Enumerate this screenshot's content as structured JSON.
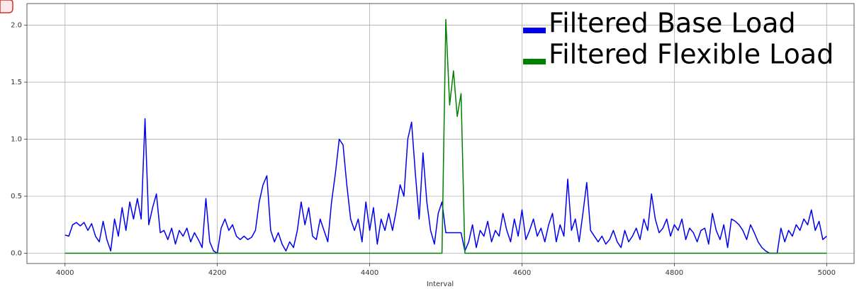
{
  "chart_data": {
    "type": "line",
    "xlabel": "Interval",
    "x": [
      4000,
      4005,
      4010,
      4015,
      4020,
      4025,
      4030,
      4035,
      4040,
      4045,
      4050,
      4055,
      4060,
      4065,
      4070,
      4075,
      4080,
      4085,
      4090,
      4095,
      4100,
      4105,
      4110,
      4115,
      4120,
      4125,
      4130,
      4135,
      4140,
      4145,
      4150,
      4155,
      4160,
      4165,
      4170,
      4175,
      4180,
      4185,
      4190,
      4195,
      4200,
      4205,
      4210,
      4215,
      4220,
      4225,
      4230,
      4235,
      4240,
      4245,
      4250,
      4255,
      4260,
      4265,
      4270,
      4275,
      4280,
      4285,
      4290,
      4295,
      4300,
      4305,
      4310,
      4315,
      4320,
      4325,
      4330,
      4335,
      4340,
      4345,
      4350,
      4355,
      4360,
      4365,
      4370,
      4375,
      4380,
      4385,
      4390,
      4395,
      4400,
      4405,
      4410,
      4415,
      4420,
      4425,
      4430,
      4435,
      4440,
      4445,
      4450,
      4455,
      4460,
      4465,
      4470,
      4475,
      4480,
      4485,
      4490,
      4495,
      4500,
      4505,
      4510,
      4515,
      4520,
      4525,
      4530,
      4535,
      4540,
      4545,
      4550,
      4555,
      4560,
      4565,
      4570,
      4575,
      4580,
      4585,
      4590,
      4595,
      4600,
      4605,
      4610,
      4615,
      4620,
      4625,
      4630,
      4635,
      4640,
      4645,
      4650,
      4655,
      4660,
      4665,
      4670,
      4675,
      4680,
      4685,
      4690,
      4695,
      4700,
      4705,
      4710,
      4715,
      4720,
      4725,
      4730,
      4735,
      4740,
      4745,
      4750,
      4755,
      4760,
      4765,
      4770,
      4775,
      4780,
      4785,
      4790,
      4795,
      4800,
      4805,
      4810,
      4815,
      4820,
      4825,
      4830,
      4835,
      4840,
      4845,
      4850,
      4855,
      4860,
      4865,
      4870,
      4875,
      4880,
      4885,
      4890,
      4895,
      4900,
      4905,
      4910,
      4915,
      4920,
      4925,
      4930,
      4935,
      4940,
      4945,
      4950,
      4955,
      4960,
      4965,
      4970,
      4975,
      4980,
      4985,
      4990,
      4995,
      5000
    ],
    "series": [
      {
        "name": "Filtered Base Load",
        "color": "#0000ee",
        "values": [
          0.16,
          0.15,
          0.25,
          0.27,
          0.24,
          0.27,
          0.2,
          0.26,
          0.15,
          0.1,
          0.28,
          0.12,
          0.02,
          0.3,
          0.15,
          0.4,
          0.2,
          0.45,
          0.3,
          0.48,
          0.3,
          1.18,
          0.25,
          0.4,
          0.52,
          0.18,
          0.2,
          0.12,
          0.22,
          0.08,
          0.2,
          0.15,
          0.22,
          0.1,
          0.18,
          0.12,
          0.05,
          0.48,
          0.1,
          0.02,
          0,
          0.22,
          0.3,
          0.2,
          0.25,
          0.15,
          0.12,
          0.15,
          0.12,
          0.14,
          0.2,
          0.45,
          0.6,
          0.68,
          0.2,
          0.1,
          0.18,
          0.08,
          0.02,
          0.1,
          0.05,
          0.2,
          0.45,
          0.25,
          0.4,
          0.15,
          0.12,
          0.3,
          0.2,
          0.1,
          0.45,
          0.7,
          1.0,
          0.95,
          0.6,
          0.3,
          0.2,
          0.3,
          0.1,
          0.45,
          0.2,
          0.4,
          0.08,
          0.3,
          0.2,
          0.35,
          0.2,
          0.38,
          0.6,
          0.5,
          1.0,
          1.15,
          0.7,
          0.3,
          0.88,
          0.45,
          0.2,
          0.08,
          0.35,
          0.45,
          0.18,
          0.18,
          0.18,
          0.18,
          0.18,
          0.02,
          0.1,
          0.25,
          0.05,
          0.2,
          0.15,
          0.28,
          0.1,
          0.2,
          0.15,
          0.35,
          0.2,
          0.1,
          0.3,
          0.15,
          0.38,
          0.12,
          0.2,
          0.3,
          0.15,
          0.22,
          0.1,
          0.25,
          0.35,
          0.1,
          0.25,
          0.15,
          0.65,
          0.2,
          0.3,
          0.1,
          0.35,
          0.62,
          0.2,
          0.15,
          0.1,
          0.15,
          0.08,
          0.12,
          0.2,
          0.1,
          0.05,
          0.2,
          0.1,
          0.15,
          0.22,
          0.12,
          0.3,
          0.2,
          0.52,
          0.3,
          0.18,
          0.22,
          0.3,
          0.15,
          0.25,
          0.2,
          0.3,
          0.12,
          0.22,
          0.18,
          0.1,
          0.2,
          0.22,
          0.08,
          0.35,
          0.2,
          0.12,
          0.25,
          0.05,
          0.3,
          0.28,
          0.25,
          0.2,
          0.12,
          0.25,
          0.18,
          0.1,
          0.05,
          0.02,
          0,
          0,
          0,
          0.22,
          0.1,
          0.2,
          0.15,
          0.25,
          0.2,
          0.3,
          0.25,
          0.38,
          0.2,
          0.28,
          0.12,
          0.15
        ]
      },
      {
        "name": "Filtered Flexible Load",
        "color": "#008000",
        "values": [
          0,
          0,
          0,
          0,
          0,
          0,
          0,
          0,
          0,
          0,
          0,
          0,
          0,
          0,
          0,
          0,
          0,
          0,
          0,
          0,
          0,
          0,
          0,
          0,
          0,
          0,
          0,
          0,
          0,
          0,
          0,
          0,
          0,
          0,
          0,
          0,
          0,
          0,
          0,
          0,
          0,
          0,
          0,
          0,
          0,
          0,
          0,
          0,
          0,
          0,
          0,
          0,
          0,
          0,
          0,
          0,
          0,
          0,
          0,
          0,
          0,
          0,
          0,
          0,
          0,
          0,
          0,
          0,
          0,
          0,
          0,
          0,
          0,
          0,
          0,
          0,
          0,
          0,
          0,
          0,
          0,
          0,
          0,
          0,
          0,
          0,
          0,
          0,
          0,
          0,
          0,
          0,
          0,
          0,
          0,
          0,
          0,
          0,
          0,
          0,
          2.05,
          1.3,
          1.6,
          1.2,
          1.4,
          0,
          0,
          0,
          0,
          0,
          0,
          0,
          0,
          0,
          0,
          0,
          0,
          0,
          0,
          0,
          0,
          0,
          0,
          0,
          0,
          0,
          0,
          0,
          0,
          0,
          0,
          0,
          0,
          0,
          0,
          0,
          0,
          0,
          0,
          0,
          0,
          0,
          0,
          0,
          0,
          0,
          0,
          0,
          0,
          0,
          0,
          0,
          0,
          0,
          0,
          0,
          0,
          0,
          0,
          0,
          0,
          0,
          0,
          0,
          0,
          0,
          0,
          0,
          0,
          0,
          0,
          0,
          0,
          0,
          0,
          0,
          0,
          0,
          0,
          0,
          0,
          0,
          0,
          0,
          0,
          0,
          0,
          0,
          0,
          0,
          0,
          0,
          0,
          0,
          0,
          0,
          0,
          0,
          0,
          0,
          0
        ]
      }
    ],
    "xlim": [
      3950,
      5036
    ],
    "ylim": [
      -0.09,
      2.19
    ],
    "xticks": [
      4000,
      4200,
      4400,
      4600,
      4800,
      5000
    ],
    "yticks": [
      {
        "value": 0,
        "label": "0.0"
      },
      0.5,
      {
        "value": 1,
        "label": "1.0"
      },
      1.5,
      {
        "value": 2,
        "label": "2.0"
      }
    ],
    "grid": true,
    "legend": "upper right"
  }
}
